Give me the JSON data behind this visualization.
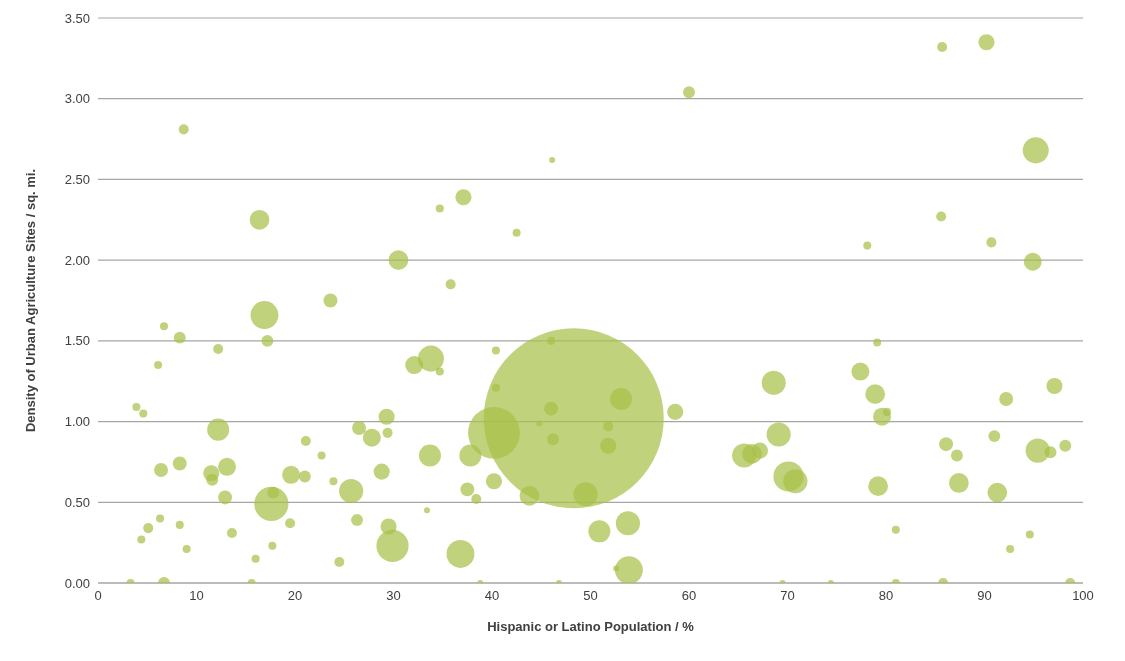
{
  "chart_data": {
    "type": "bubble",
    "xlabel": "Hispanic or Latino Population / %",
    "ylabel": "Density of Urban Agriculture Sites / sq. mi.",
    "xlim": [
      0,
      100
    ],
    "xticks": [
      0,
      10,
      20,
      30,
      40,
      50,
      60,
      70,
      80,
      90,
      100
    ],
    "ylim": [
      0,
      3.5
    ],
    "yticks": [
      {
        "value": 0,
        "label": "0.00"
      },
      {
        "value": 0.5,
        "label": "0.50"
      },
      {
        "value": 1,
        "label": "1.00"
      },
      {
        "value": 1.5,
        "label": "1.50"
      },
      {
        "value": 2,
        "label": "2.00"
      },
      {
        "value": 2.5,
        "label": "2.50"
      },
      {
        "value": 3,
        "label": "3.00"
      },
      {
        "value": 3.5,
        "label": "3.50"
      }
    ],
    "grid": "y",
    "marker": "circle",
    "series": [
      {
        "color": "#a8c04a",
        "x": [
          8.7,
          16.4,
          16.9,
          17.2,
          23.6,
          30.5,
          37.1,
          34.7,
          35.8,
          42.5,
          46.1,
          60.0,
          85.7,
          90.2,
          95.2,
          85.6,
          78.1,
          90.7,
          94.9,
          6.7,
          8.3,
          12.2,
          6.1,
          3.9,
          4.6,
          12.2,
          21.1,
          22.7,
          26.5,
          27.8,
          29.3,
          29.4,
          32.1,
          33.8,
          34.7,
          40.4,
          40.4,
          40.2,
          48.3,
          46.0,
          46.0,
          46.2,
          44.8,
          51.8,
          51.8,
          53.1,
          58.6,
          49.5,
          50.9,
          53.8,
          53.9,
          52.6,
          43.8,
          40.2,
          37.8,
          37.5,
          38.4,
          36.8,
          33.7,
          33.4,
          29.9,
          29.5,
          28.8,
          25.7,
          26.3,
          23.9,
          24.5,
          21.0,
          19.6,
          17.6,
          17.8,
          19.5,
          17.7,
          16.0,
          13.1,
          12.9,
          11.5,
          11.6,
          8.3,
          6.4,
          8.3,
          6.3,
          5.1,
          4.4,
          9.0,
          13.6,
          6.7,
          3.3,
          15.6,
          65.6,
          66.4,
          67.2,
          68.6,
          69.1,
          70.1,
          70.8,
          77.4,
          78.9,
          79.1,
          79.6,
          80.1,
          79.2,
          81.0,
          86.1,
          87.2,
          87.4,
          91.3,
          91.0,
          92.2,
          95.4,
          96.7,
          97.1,
          98.2,
          94.6,
          92.6,
          85.8,
          98.7,
          81.0,
          74.4,
          69.5,
          46.8,
          38.8
        ],
        "values": [
          2.81,
          2.25,
          1.66,
          1.5,
          1.75,
          2.0,
          2.39,
          2.32,
          1.85,
          2.17,
          2.62,
          3.04,
          3.32,
          3.35,
          2.68,
          2.27,
          2.09,
          2.11,
          1.99,
          1.59,
          1.52,
          1.45,
          1.35,
          1.09,
          1.05,
          0.95,
          0.88,
          0.79,
          0.96,
          0.9,
          1.03,
          0.93,
          1.35,
          1.39,
          1.31,
          1.44,
          1.21,
          0.93,
          1.02,
          1.5,
          1.08,
          0.89,
          0.99,
          0.97,
          0.85,
          1.14,
          1.06,
          0.55,
          0.32,
          0.37,
          0.08,
          0.09,
          0.54,
          0.63,
          0.79,
          0.58,
          0.52,
          0.18,
          0.79,
          0.45,
          0.23,
          0.35,
          0.69,
          0.57,
          0.39,
          0.63,
          0.13,
          0.66,
          0.67,
          0.49,
          0.56,
          0.37,
          0.23,
          0.15,
          0.72,
          0.53,
          0.68,
          0.64,
          0.74,
          0.7,
          0.36,
          0.4,
          0.34,
          0.27,
          0.21,
          0.31,
          0.0,
          0.0,
          0.0,
          0.79,
          0.8,
          0.82,
          1.24,
          0.92,
          0.66,
          0.63,
          1.31,
          1.17,
          1.49,
          1.03,
          1.06,
          0.6,
          0.33,
          0.86,
          0.79,
          0.62,
          0.56,
          0.91,
          1.14,
          0.82,
          0.81,
          1.22,
          0.85,
          0.3,
          0.21,
          0.0,
          0.0,
          0.0,
          0.0,
          0.0,
          0.0,
          0.0
        ],
        "sizes": [
          0.0031,
          0.012,
          0.024,
          0.0044,
          0.006,
          0.012,
          0.008,
          0.002,
          0.0031,
          0.002,
          0.0011,
          0.0044,
          0.0031,
          0.008,
          0.021,
          0.0031,
          0.002,
          0.0031,
          0.01,
          0.002,
          0.0044,
          0.0031,
          0.002,
          0.002,
          0.002,
          0.015,
          0.0031,
          0.002,
          0.006,
          0.01,
          0.008,
          0.0031,
          0.01,
          0.021,
          0.002,
          0.002,
          0.002,
          0.083,
          1,
          0.002,
          0.006,
          0.0044,
          0.0011,
          0.0031,
          0.008,
          0.015,
          0.008,
          0.018,
          0.015,
          0.018,
          0.024,
          0.0011,
          0.012,
          0.008,
          0.015,
          0.006,
          0.0031,
          0.024,
          0.015,
          0.0011,
          0.032,
          0.008,
          0.008,
          0.018,
          0.0044,
          0.002,
          0.0031,
          0.0044,
          0.01,
          0.036,
          0.0044,
          0.0031,
          0.002,
          0.002,
          0.01,
          0.006,
          0.008,
          0.0044,
          0.006,
          0.006,
          0.002,
          0.002,
          0.0031,
          0.002,
          0.002,
          0.0031,
          0.0044,
          0.002,
          0.002,
          0.018,
          0.012,
          0.008,
          0.018,
          0.018,
          0.028,
          0.018,
          0.01,
          0.012,
          0.002,
          0.01,
          0.002,
          0.012,
          0.002,
          0.006,
          0.0044,
          0.012,
          0.012,
          0.0044,
          0.006,
          0.018,
          0.0044,
          0.008,
          0.0044,
          0.002,
          0.002,
          0.0031,
          0.0031,
          0.002,
          0.0011,
          0.0011,
          0.0011,
          0.0011
        ]
      }
    ]
  }
}
